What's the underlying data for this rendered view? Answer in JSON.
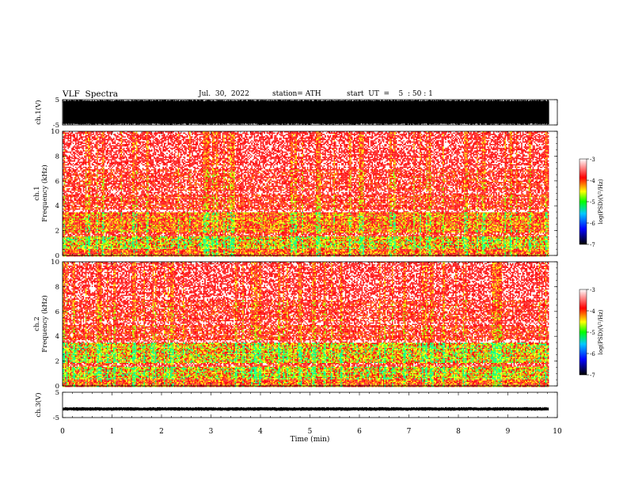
{
  "header": {
    "title": "VLF  Spectra",
    "date": "Jul.  30,  2022",
    "station": "station= ATH",
    "start": "start  UT  =    5  : 50 : 1"
  },
  "colors": {
    "ink": "#000000",
    "scale_low": "#000000",
    "scale_blue": "#0000ff",
    "scale_green": "#00ff00",
    "scale_yellow": "#ffff00",
    "scale_red": "#ff0000",
    "scale_high": "#ffffff"
  },
  "chart_data": [
    {
      "type": "line",
      "ylabel": "ch.1(V)",
      "ylim": [
        -5,
        5
      ],
      "yticks": [
        "5",
        "-5"
      ],
      "xlim": [
        0,
        10
      ],
      "description_values": {
        "amplitude_envelope": [
          -5,
          5
        ]
      }
    },
    {
      "type": "heatmap",
      "channel_label": "ch.1",
      "ylabel": "Frequency  (kHz)",
      "ylim": [
        0,
        10
      ],
      "yticks": [
        "0",
        "2",
        "4",
        "6",
        "8",
        "10"
      ],
      "xlim": [
        0,
        10
      ],
      "data_extent_min": 9.83,
      "colorbar": {
        "label": "log(PSD)(V²/Hz)",
        "range": [
          -7,
          -3
        ],
        "ticks": [
          "-3",
          "-4",
          "-5",
          "-6",
          "-7"
        ]
      }
    },
    {
      "type": "heatmap",
      "channel_label": "ch.2",
      "ylabel": "Frequency  (kHz)",
      "ylim": [
        0,
        10
      ],
      "yticks": [
        "0",
        "2",
        "4",
        "6",
        "8",
        "10"
      ],
      "xlim": [
        0,
        10
      ],
      "data_extent_min": 9.83,
      "colorbar": {
        "label": "log(PSD)(V²/Hz)",
        "range": [
          -7,
          -3
        ],
        "ticks": [
          "-3",
          "-4",
          "-5",
          "-6",
          "-7"
        ]
      }
    },
    {
      "type": "line",
      "ylabel": "ch.3(V)",
      "ylim": [
        -5,
        5
      ],
      "yticks": [
        "5",
        "-5"
      ],
      "xlim": [
        0,
        10
      ],
      "xlabel": "Time  (min)",
      "xticks": [
        "0",
        "1",
        "2",
        "3",
        "4",
        "5",
        "6",
        "7",
        "8",
        "9",
        "10"
      ],
      "baseline_value": -1.6
    }
  ]
}
